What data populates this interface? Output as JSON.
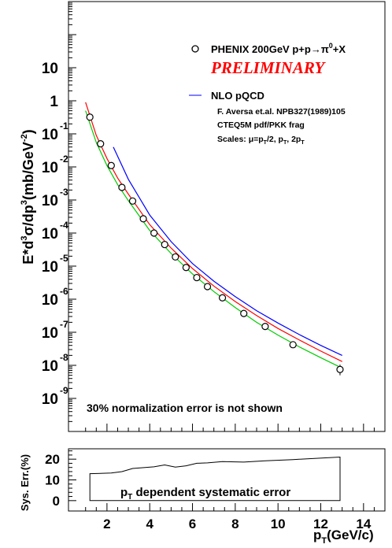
{
  "chart_data": [
    {
      "type": "scatter",
      "ylabel_main": "E*d",
      "ylabel_sup1": "3",
      "ylabel_mid": "σ/dp",
      "ylabel_sup2": "3",
      "ylabel_end": "(mb/GeV",
      "ylabel_sup3": "-2",
      "ylabel_close": ")",
      "y_scale": "log",
      "xlim": [
        0.2,
        15.0
      ],
      "ylim": [
        1e-10,
        1000
      ],
      "grid": false,
      "y_ticks": [
        {
          "value": 10,
          "base": "10",
          "exp": ""
        },
        {
          "value": 1,
          "base": "1",
          "exp": ""
        },
        {
          "value": 0.1,
          "base": "10",
          "exp": "-1"
        },
        {
          "value": 0.01,
          "base": "10",
          "exp": "-2"
        },
        {
          "value": 0.001,
          "base": "10",
          "exp": "-3"
        },
        {
          "value": 0.0001,
          "base": "10",
          "exp": "-4"
        },
        {
          "value": 1e-05,
          "base": "10",
          "exp": "-5"
        },
        {
          "value": 1e-06,
          "base": "10",
          "exp": "-6"
        },
        {
          "value": 1e-07,
          "base": "10",
          "exp": "-7"
        },
        {
          "value": 1e-08,
          "base": "10",
          "exp": "-8"
        },
        {
          "value": 1e-09,
          "base": "10",
          "exp": "-9"
        }
      ],
      "legend": {
        "data_label_a": "PHENIX 200GeV p+p",
        "data_label_arrow": "→π",
        "data_label_sup": "0",
        "data_label_b": "+X",
        "preliminary": "PRELIMINARY",
        "theory_label": "NLO pQCD",
        "ref": "F. Aversa et.al. NPB327(1989)105",
        "pdf": "CTEQ5M pdf/PKK frag",
        "scales_a": "Scales: μ=p",
        "scales_sub1": "T",
        "scales_b": "/2, p",
        "scales_sub2": "T",
        "scales_c": ", 2p",
        "scales_sub3": "T"
      },
      "note": "30% normalization error is not shown",
      "series": [
        {
          "name": "PHENIX 200GeV p+p→π0+X",
          "style": "open-circle",
          "x": [
            1.2,
            1.7,
            2.2,
            2.7,
            3.2,
            3.7,
            4.2,
            4.7,
            5.2,
            5.7,
            6.2,
            6.7,
            7.4,
            8.4,
            9.4,
            10.7,
            12.9
          ],
          "y": [
            0.32,
            0.05,
            0.011,
            0.0024,
            0.00093,
            0.00027,
            0.0001,
            4.5e-05,
            1.9e-05,
            9.1e-06,
            4.5e-06,
            2.4e-06,
            1.1e-06,
            3.7e-07,
            1.5e-07,
            4.2e-08,
            7.5e-09
          ],
          "y_err_low": [
            0,
            0,
            0,
            0,
            0,
            0,
            0,
            0,
            0,
            0,
            0,
            0,
            0,
            0,
            0,
            4e-09,
            2.5e-09
          ],
          "y_err_high": [
            0,
            0,
            0,
            0,
            0,
            0,
            0,
            0,
            0,
            0,
            0,
            0,
            0,
            0,
            0,
            5e-09,
            3e-09
          ]
        },
        {
          "name": "μ=pT/2",
          "color": "#0000ff",
          "style": "line",
          "x": [
            2.3,
            3.0,
            4.0,
            5.0,
            6.0,
            7.0,
            8.0,
            9.0,
            10.0,
            11.0,
            12.0,
            13.0
          ],
          "y": [
            0.04,
            0.0042,
            0.00035,
            5.5e-05,
            1.2e-05,
            3.5e-06,
            1.2e-06,
            4.5e-07,
            1.9e-07,
            8.5e-08,
            4e-08,
            2e-08
          ]
        },
        {
          "name": "μ=pT",
          "color": "#ff0000",
          "style": "line",
          "x": [
            1.0,
            1.5,
            2.0,
            2.5,
            3.0,
            4.0,
            5.0,
            6.0,
            7.0,
            8.0,
            9.0,
            10.0,
            11.0,
            12.0,
            13.0
          ],
          "y": [
            0.9,
            0.09,
            0.018,
            0.0046,
            0.0015,
            0.00018,
            3.5e-05,
            8.5e-06,
            2.5e-06,
            8.5e-07,
            3.2e-07,
            1.3e-07,
            5.8e-08,
            2.7e-08,
            1.3e-08
          ]
        },
        {
          "name": "μ=2pT",
          "color": "#00cc00",
          "style": "line",
          "x": [
            1.0,
            1.5,
            2.0,
            2.5,
            3.0,
            4.0,
            5.0,
            6.0,
            7.0,
            8.0,
            9.0,
            10.0,
            11.0,
            12.0,
            13.0
          ],
          "y": [
            0.5,
            0.055,
            0.011,
            0.0029,
            0.00095,
            0.00012,
            2.4e-05,
            5.8e-06,
            1.7e-06,
            5.6e-07,
            2e-07,
            8.2e-08,
            3.6e-08,
            1.7e-08,
            8.2e-09
          ]
        }
      ]
    },
    {
      "type": "area",
      "ylabel": "Sys. Err.(%)",
      "xlabel_main": "p",
      "xlabel_sub": "T",
      "xlabel_end": "(GeV/c)",
      "xlim": [
        0.2,
        15.0
      ],
      "ylim": [
        -5,
        25
      ],
      "x_ticks": [
        "2",
        "4",
        "6",
        "8",
        "10",
        "12",
        "14"
      ],
      "x_tick_values": [
        2,
        4,
        6,
        8,
        10,
        12,
        14
      ],
      "y_ticks": [
        "0",
        "10",
        "20"
      ],
      "y_tick_values": [
        0,
        10,
        20
      ],
      "annotation_main": "p",
      "annotation_sub": "T",
      "annotation_end": " dependent systematic error",
      "series": [
        {
          "name": "p_T dependent systematic error",
          "x": [
            1.2,
            2.2,
            2.7,
            3.2,
            4.2,
            4.7,
            5.2,
            5.7,
            6.2,
            6.7,
            7.4,
            8.4,
            9.4,
            10.7,
            12.9
          ],
          "y": [
            13.0,
            13.3,
            14.0,
            15.5,
            16.3,
            17.2,
            16.2,
            16.8,
            18.0,
            18.2,
            18.8,
            18.6,
            19.2,
            19.8,
            21.0
          ]
        }
      ]
    }
  ]
}
